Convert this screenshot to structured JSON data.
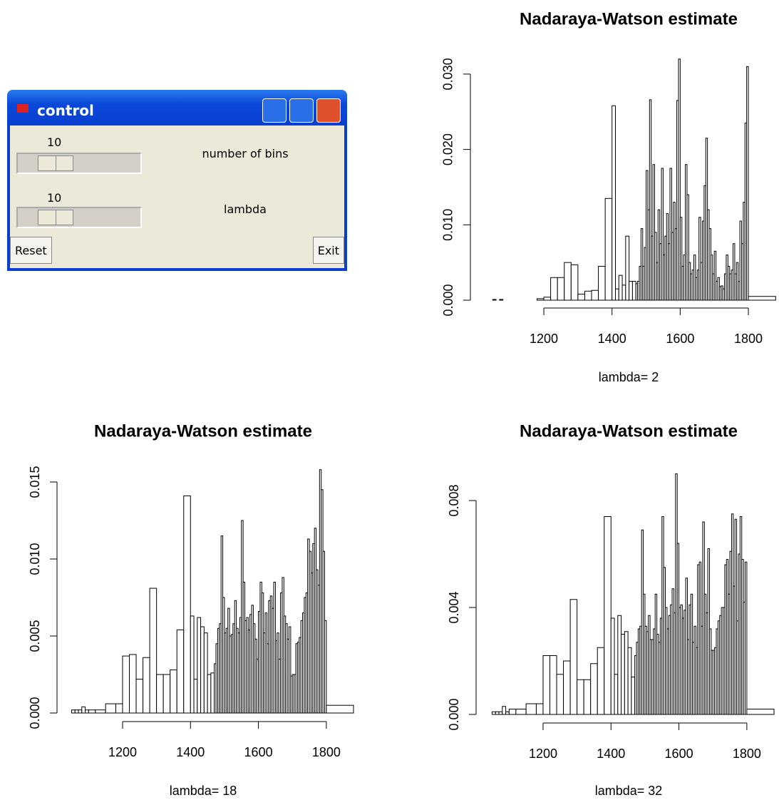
{
  "control": {
    "title": "control",
    "sliders": [
      {
        "value": 10,
        "label": "number of bins"
      },
      {
        "value": 10,
        "label": "lambda"
      }
    ],
    "buttons": [
      "Reset",
      "Exit"
    ]
  },
  "chart_data": [
    {
      "type": "histogram",
      "title": "Nadaraya-Watson estimate",
      "xlabel": "lambda= 2",
      "color": "#ffffff",
      "edgecolor": "#000000",
      "bins": [
        1050,
        1060,
        1070,
        1080,
        1090,
        1100,
        1120,
        1150,
        1180,
        1200,
        1220,
        1240,
        1260,
        1280,
        1300,
        1320,
        1340,
        1360,
        1380,
        1400,
        1410,
        1420,
        1430,
        1440,
        1450,
        1460,
        1470,
        1475,
        1480,
        1485,
        1490,
        1495,
        1500,
        1505,
        1510,
        1515,
        1520,
        1525,
        1530,
        1535,
        1540,
        1545,
        1550,
        1555,
        1560,
        1565,
        1570,
        1575,
        1580,
        1585,
        1590,
        1595,
        1600,
        1605,
        1610,
        1615,
        1620,
        1625,
        1630,
        1635,
        1640,
        1645,
        1650,
        1655,
        1660,
        1665,
        1670,
        1675,
        1680,
        1685,
        1690,
        1695,
        1700,
        1705,
        1710,
        1715,
        1720,
        1725,
        1730,
        1735,
        1740,
        1745,
        1750,
        1755,
        1760,
        1765,
        1770,
        1775,
        1780,
        1785,
        1790,
        1795,
        1800,
        1880
      ],
      "values": [
        0.0001,
        0,
        0.0001,
        0,
        0,
        0,
        0,
        0,
        0.0002,
        0.0004,
        0.003,
        0.003,
        0.005,
        0.0047,
        0.0008,
        0.0012,
        0.0013,
        0.0045,
        0.0135,
        0.0258,
        0.0015,
        0.0033,
        0.002,
        0.0085,
        0.0025,
        0.0025,
        0.0022,
        0.0025,
        0.0045,
        0.0095,
        0.0045,
        0.007,
        0.0172,
        0.012,
        0.0266,
        0.0085,
        0.018,
        0.009,
        0.005,
        0.012,
        0.0075,
        0.0175,
        0.006,
        0.0085,
        0.0115,
        0.0075,
        0.0175,
        0.009,
        0.013,
        0.0095,
        0.0265,
        0.032,
        0.011,
        0.0045,
        0.006,
        0.018,
        0.014,
        0.005,
        0.0035,
        0.004,
        0.006,
        0.003,
        0.004,
        0.011,
        0.005,
        0.0105,
        0.0152,
        0.0215,
        0.012,
        0.0095,
        0.006,
        0.0035,
        0.0065,
        0.0025,
        0.003,
        0.0018,
        0.0019,
        0.0015,
        0.0035,
        0.006,
        0.0045,
        0.0035,
        0.004,
        0.0075,
        0.0035,
        0.005,
        0.0025,
        0.0105,
        0.0075,
        0.013,
        0.0235,
        0.031,
        0.0005
      ],
      "xlim": [
        1050,
        1880
      ],
      "xticks": [
        1200,
        1400,
        1600,
        1800
      ],
      "ylim": [
        0,
        0.033
      ],
      "yticks": [
        {
          "value": 0,
          "label": "0.000"
        },
        {
          "value": 0.01,
          "label": "0.010"
        },
        {
          "value": 0.02,
          "label": "0.020"
        },
        {
          "value": 0.03,
          "label": "0.030"
        }
      ]
    },
    {
      "type": "histogram",
      "title": "Nadaraya-Watson estimate",
      "xlabel": "lambda= 18",
      "color": "#ffffff",
      "edgecolor": "#000000",
      "bins": [
        1050,
        1060,
        1070,
        1080,
        1090,
        1100,
        1120,
        1150,
        1180,
        1200,
        1220,
        1240,
        1260,
        1280,
        1300,
        1320,
        1340,
        1360,
        1380,
        1400,
        1410,
        1420,
        1430,
        1440,
        1450,
        1460,
        1470,
        1475,
        1480,
        1485,
        1490,
        1495,
        1500,
        1505,
        1510,
        1515,
        1520,
        1525,
        1530,
        1535,
        1540,
        1545,
        1550,
        1555,
        1560,
        1565,
        1570,
        1575,
        1580,
        1585,
        1590,
        1595,
        1600,
        1605,
        1610,
        1615,
        1620,
        1625,
        1630,
        1635,
        1640,
        1645,
        1650,
        1655,
        1660,
        1665,
        1670,
        1675,
        1680,
        1685,
        1690,
        1695,
        1700,
        1705,
        1710,
        1715,
        1720,
        1725,
        1730,
        1735,
        1740,
        1745,
        1750,
        1755,
        1760,
        1765,
        1770,
        1775,
        1780,
        1785,
        1790,
        1795,
        1800,
        1880
      ],
      "values": [
        0.0002,
        0.0002,
        0.0002,
        0.0004,
        0.0002,
        0.0002,
        0.0002,
        0.0006,
        0.0006,
        0.0037,
        0.0038,
        0.0022,
        0.0036,
        0.0081,
        0.0025,
        0.0025,
        0.0028,
        0.0054,
        0.0141,
        0.0063,
        0.0022,
        0.0062,
        0.0056,
        0.0052,
        0.0025,
        0.0026,
        0.0032,
        0.0045,
        0.0055,
        0.0058,
        0.0115,
        0.0075,
        0.0052,
        0.0055,
        0.0068,
        0.005,
        0.0051,
        0.0058,
        0.0073,
        0.0055,
        0.0052,
        0.0062,
        0.0125,
        0.0085,
        0.006,
        0.0062,
        0.0054,
        0.0064,
        0.007,
        0.0058,
        0.0048,
        0.0035,
        0.0066,
        0.0085,
        0.0078,
        0.0052,
        0.0065,
        0.0045,
        0.0073,
        0.0076,
        0.0068,
        0.0085,
        0.0047,
        0.0052,
        0.0035,
        0.0078,
        0.0088,
        0.0063,
        0.0058,
        0.0048,
        0.0056,
        0.0024,
        0.0025,
        0.0025,
        0.0045,
        0.0046,
        0.0049,
        0.006,
        0.0065,
        0.0075,
        0.0078,
        0.0113,
        0.0105,
        0.0091,
        0.011,
        0.012,
        0.0093,
        0.0083,
        0.0158,
        0.0145,
        0.0105,
        0.006,
        0.0005
      ],
      "xlim": [
        1050,
        1880
      ],
      "xticks": [
        1200,
        1400,
        1600,
        1800
      ],
      "ylim": [
        0,
        0.016
      ],
      "yticks": [
        {
          "value": 0,
          "label": "0.000"
        },
        {
          "value": 0.005,
          "label": "0.005"
        },
        {
          "value": 0.01,
          "label": "0.010"
        },
        {
          "value": 0.015,
          "label": "0.015"
        }
      ]
    },
    {
      "type": "histogram",
      "title": "Nadaraya-Watson estimate",
      "xlabel": "lambda= 32",
      "color": "#ffffff",
      "edgecolor": "#000000",
      "bins": [
        1050,
        1060,
        1070,
        1080,
        1090,
        1100,
        1120,
        1150,
        1180,
        1200,
        1220,
        1240,
        1260,
        1280,
        1300,
        1320,
        1340,
        1360,
        1380,
        1400,
        1410,
        1420,
        1430,
        1440,
        1450,
        1460,
        1470,
        1475,
        1480,
        1485,
        1490,
        1495,
        1500,
        1505,
        1510,
        1515,
        1520,
        1525,
        1530,
        1535,
        1540,
        1545,
        1550,
        1555,
        1560,
        1565,
        1570,
        1575,
        1580,
        1585,
        1590,
        1595,
        1600,
        1605,
        1610,
        1615,
        1620,
        1625,
        1630,
        1635,
        1640,
        1645,
        1650,
        1655,
        1660,
        1665,
        1670,
        1675,
        1680,
        1685,
        1690,
        1695,
        1700,
        1705,
        1710,
        1715,
        1720,
        1725,
        1730,
        1735,
        1740,
        1745,
        1750,
        1755,
        1760,
        1765,
        1770,
        1775,
        1780,
        1785,
        1790,
        1795,
        1800,
        1880
      ],
      "values": [
        0.0001,
        0.0001,
        0.0001,
        0.0003,
        0.0001,
        0.0002,
        0.0002,
        0.0004,
        0.0004,
        0.0022,
        0.0022,
        0.0015,
        0.002,
        0.0043,
        0.0013,
        0.0013,
        0.0019,
        0.0025,
        0.0074,
        0.0036,
        0.0015,
        0.0037,
        0.003,
        0.0031,
        0.0025,
        0.0014,
        0.0022,
        0.0027,
        0.0032,
        0.0033,
        0.0069,
        0.0045,
        0.0033,
        0.0031,
        0.0037,
        0.0028,
        0.0028,
        0.0032,
        0.0045,
        0.003,
        0.0027,
        0.0036,
        0.0074,
        0.0055,
        0.004,
        0.0032,
        0.0037,
        0.0041,
        0.0047,
        0.0038,
        0.009,
        0.0064,
        0.004,
        0.0041,
        0.0036,
        0.0039,
        0.0051,
        0.0028,
        0.0041,
        0.0045,
        0.0027,
        0.0033,
        0.0025,
        0.0056,
        0.0057,
        0.0033,
        0.0072,
        0.0045,
        0.0038,
        0.0062,
        0.0032,
        0.0024,
        0.0024,
        0.0025,
        0.0032,
        0.0035,
        0.0037,
        0.004,
        0.004,
        0.0056,
        0.0058,
        0.0045,
        0.0061,
        0.0075,
        0.0048,
        0.0073,
        0.0035,
        0.006,
        0.0074,
        0.0058,
        0.0042,
        0.0057,
        0.0002
      ],
      "xlim": [
        1050,
        1880
      ],
      "xticks": [
        1200,
        1400,
        1600,
        1800
      ],
      "ylim": [
        0,
        0.0092
      ],
      "yticks": [
        {
          "value": 0,
          "label": "0.000"
        },
        {
          "value": 0.004,
          "label": "0.004"
        },
        {
          "value": 0.008,
          "label": "0.008"
        }
      ]
    }
  ]
}
